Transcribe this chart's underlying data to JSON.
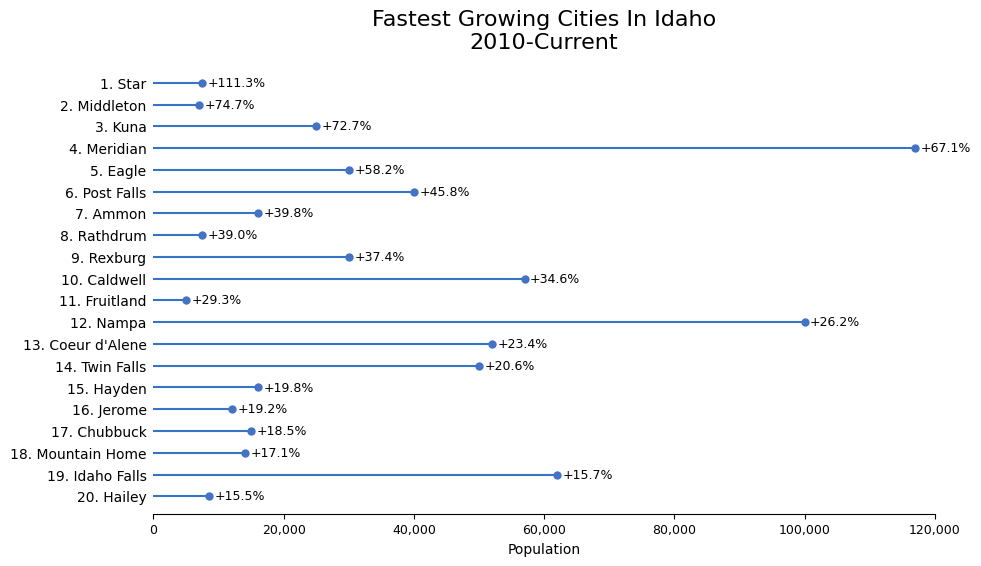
{
  "title_line1": "Fastest Growing Cities In Idaho",
  "title_line2": "2010-Current",
  "xlabel": "Population",
  "cities": [
    "1. Star",
    "2. Middleton",
    "3. Kuna",
    "4. Meridian",
    "5. Eagle",
    "6. Post Falls",
    "7. Ammon",
    "8. Rathdrum",
    "9. Rexburg",
    "10. Caldwell",
    "11. Fruitland",
    "12. Nampa",
    "13. Coeur d'Alene",
    "14. Twin Falls",
    "15. Hayden",
    "16. Jerome",
    "17. Chubbuck",
    "18. Mountain Home",
    "19. Idaho Falls",
    "20. Hailey"
  ],
  "populations": [
    7500,
    7000,
    25000,
    117000,
    30000,
    40000,
    16000,
    7500,
    30000,
    57000,
    5000,
    100000,
    52000,
    50000,
    16000,
    12000,
    15000,
    14000,
    62000,
    8500
  ],
  "growth": [
    "+111.3%",
    "+74.7%",
    "+72.7%",
    "+67.1%",
    "+58.2%",
    "+45.8%",
    "+39.8%",
    "+39.0%",
    "+37.4%",
    "+34.6%",
    "+29.3%",
    "+26.2%",
    "+23.4%",
    "+20.6%",
    "+19.8%",
    "+19.2%",
    "+18.5%",
    "+17.1%",
    "+15.7%",
    "+15.5%"
  ],
  "line_color": "#3575c5",
  "dot_color": "#4472c4",
  "xlim": [
    0,
    120000
  ],
  "xticks": [
    0,
    20000,
    40000,
    60000,
    80000,
    100000,
    120000
  ],
  "background_color": "#ffffff",
  "title_fontsize": 16,
  "label_fontsize": 10,
  "tick_fontsize": 9,
  "annotation_fontsize": 9
}
